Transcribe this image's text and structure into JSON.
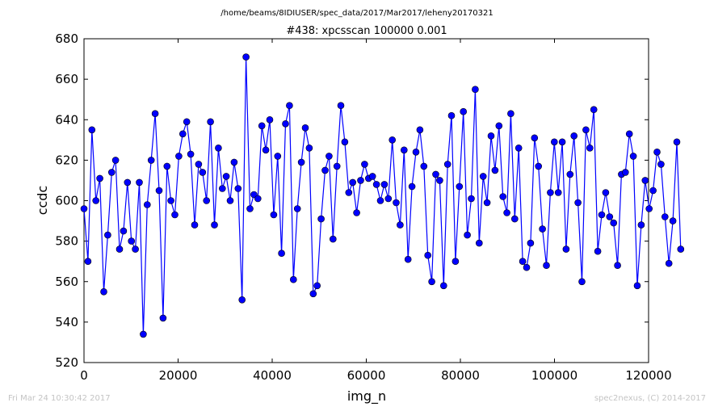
{
  "figure": {
    "suptitle": "/home/beams/8IDIUSER/spec_data/2017/Mar2017/leheny20170321",
    "footer_left": "Fri Mar 24 10:30:42 2017",
    "footer_right": "spec2nexus, (C) 2014-2017"
  },
  "chart_data": {
    "type": "line",
    "title": "#438: xpcsscan 100000 0.001",
    "xlabel": "img_n",
    "ylabel": "ccdc",
    "xlim": [
      0,
      120000
    ],
    "ylim": [
      520,
      680
    ],
    "xticks": [
      0,
      20000,
      40000,
      60000,
      80000,
      100000,
      120000
    ],
    "yticks": [
      520,
      540,
      560,
      580,
      600,
      620,
      640,
      660,
      680
    ],
    "grid": false,
    "legend": "none",
    "series_color": "#0000ff",
    "marker": "circle",
    "x_start": 0,
    "x_step": 840,
    "values": [
      596,
      570,
      635,
      600,
      611,
      555,
      583,
      614,
      620,
      576,
      585,
      609,
      580,
      576,
      609,
      534,
      598,
      620,
      643,
      605,
      542,
      617,
      600,
      593,
      622,
      633,
      639,
      623,
      588,
      618,
      614,
      600,
      639,
      588,
      626,
      606,
      612,
      600,
      619,
      606,
      551,
      671,
      596,
      603,
      601,
      637,
      625,
      640,
      593,
      622,
      574,
      638,
      647,
      561,
      596,
      619,
      636,
      626,
      554,
      558,
      591,
      615,
      622,
      581,
      617,
      647,
      629,
      604,
      609,
      594,
      610,
      618,
      611,
      612,
      608,
      600,
      608,
      601,
      630,
      599,
      588,
      625,
      571,
      607,
      624,
      635,
      617,
      573,
      560,
      613,
      610,
      558,
      618,
      642,
      570,
      607,
      644,
      583,
      601,
      655,
      579,
      612,
      599,
      632,
      615,
      637,
      602,
      594,
      643,
      591,
      626,
      570,
      567,
      579,
      631,
      617,
      586,
      568,
      604,
      629,
      604,
      629,
      576,
      613,
      632,
      599,
      560,
      635,
      626,
      645,
      575,
      593,
      604,
      592,
      589,
      568,
      613,
      614,
      633,
      622,
      558,
      588,
      610,
      596,
      605,
      624,
      618,
      592,
      569,
      590,
      629,
      576
    ]
  }
}
